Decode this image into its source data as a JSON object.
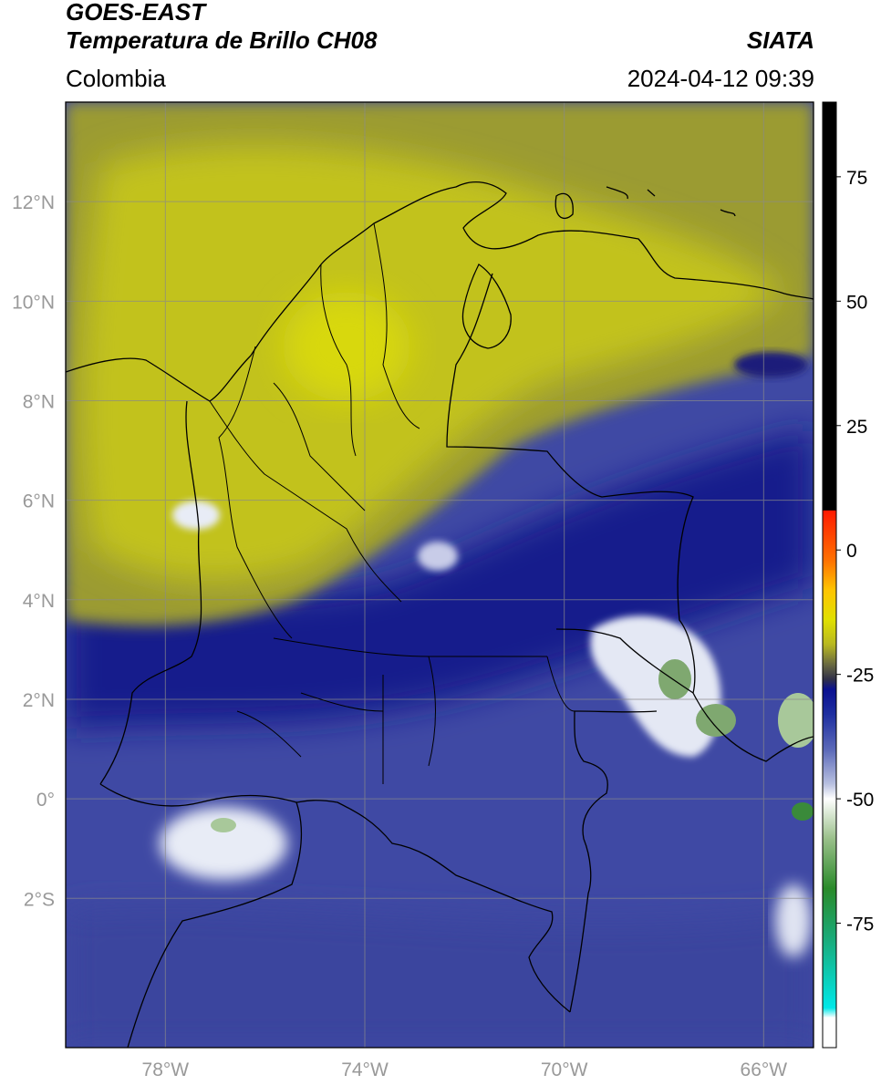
{
  "header": {
    "line1": "GOES-EAST",
    "line2": "Temperatura de Brillo CH08",
    "brand": "SIATA",
    "region": "Colombia",
    "datetime": "2024-04-12 09:39"
  },
  "map": {
    "lon_range": [
      -80,
      -65
    ],
    "lat_range": [
      -5,
      14
    ],
    "lon_ticks": [
      {
        "value": -78,
        "label": "78°W"
      },
      {
        "value": -74,
        "label": "74°W"
      },
      {
        "value": -70,
        "label": "70°W"
      },
      {
        "value": -66,
        "label": "66°W"
      }
    ],
    "lat_ticks": [
      {
        "value": 12,
        "label": "12°N"
      },
      {
        "value": 10,
        "label": "10°N"
      },
      {
        "value": 8,
        "label": "8°N"
      },
      {
        "value": 6,
        "label": "6°N"
      },
      {
        "value": 4,
        "label": "4°N"
      },
      {
        "value": 2,
        "label": "2°N"
      },
      {
        "value": 0,
        "label": "0°"
      },
      {
        "value": -2,
        "label": "2°S"
      }
    ],
    "grid": true,
    "colors": {
      "warm_yellow": "#c8c81a",
      "olive": "#9a9a30",
      "navy": "#1a1f8a",
      "slate_blue": "#4a52a8",
      "white": "#ffffff",
      "green": "#4a8a3a",
      "border": "#000000",
      "grid": "#8a8a8a"
    }
  },
  "colorbar": {
    "range": [
      -100,
      90
    ],
    "ticks": [
      {
        "value": 75,
        "label": "75"
      },
      {
        "value": 50,
        "label": "50"
      },
      {
        "value": 25,
        "label": "25"
      },
      {
        "value": 0,
        "label": "0"
      },
      {
        "value": -25,
        "label": "-25"
      },
      {
        "value": -50,
        "label": "-50"
      },
      {
        "value": -75,
        "label": "-75"
      }
    ],
    "stops": [
      {
        "value": 90,
        "color": "#000000"
      },
      {
        "value": 8,
        "color": "#000000"
      },
      {
        "value": 7.9,
        "color": "#ff1a00"
      },
      {
        "value": -2,
        "color": "#ff7000"
      },
      {
        "value": -8,
        "color": "#ffc400"
      },
      {
        "value": -14,
        "color": "#e0e000"
      },
      {
        "value": -19,
        "color": "#b8b820"
      },
      {
        "value": -23,
        "color": "#6a6a40"
      },
      {
        "value": -26,
        "color": "#303048"
      },
      {
        "value": -28,
        "color": "#0a1090"
      },
      {
        "value": -33,
        "color": "#1e2ea0"
      },
      {
        "value": -40,
        "color": "#5a68b8"
      },
      {
        "value": -47,
        "color": "#b8c0e0"
      },
      {
        "value": -50,
        "color": "#ffffff"
      },
      {
        "value": -58,
        "color": "#9ac08a"
      },
      {
        "value": -68,
        "color": "#2a8a2a"
      },
      {
        "value": -78,
        "color": "#1aaa78"
      },
      {
        "value": -92,
        "color": "#00e8e8"
      },
      {
        "value": -94,
        "color": "#ffffff"
      },
      {
        "value": -100,
        "color": "#ffffff"
      }
    ]
  }
}
